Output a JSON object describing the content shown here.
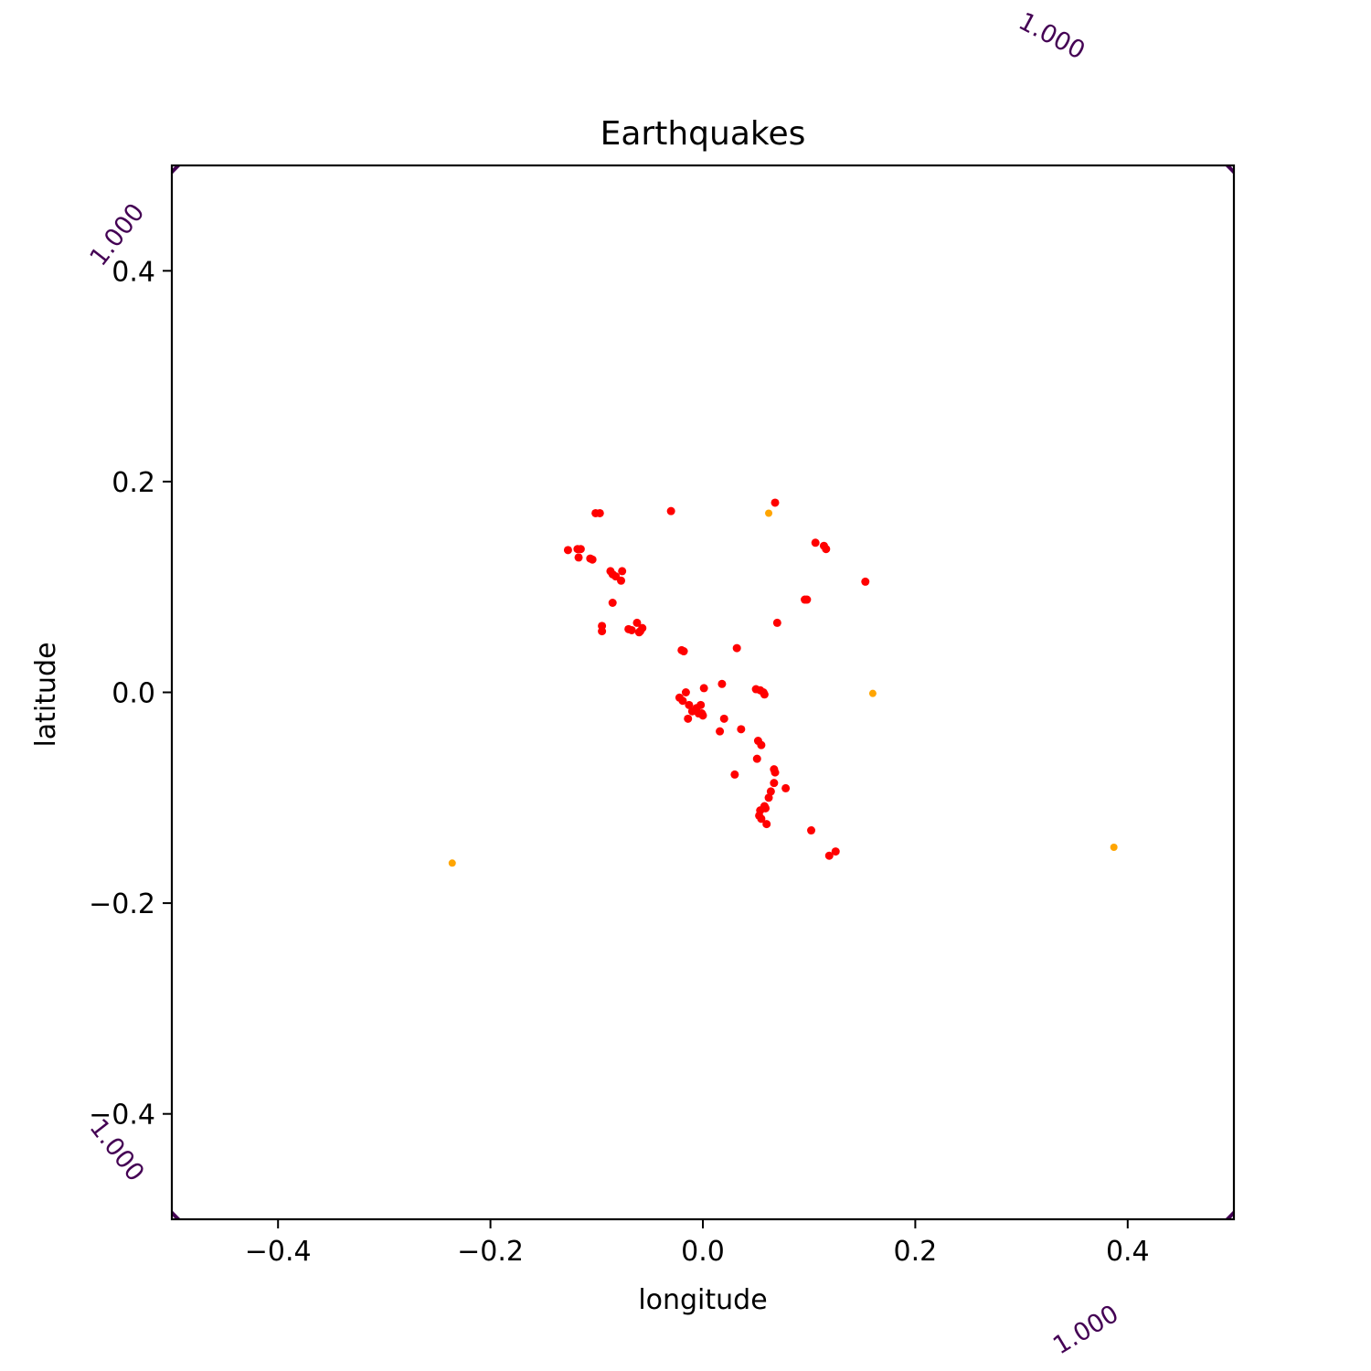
{
  "chart_data": {
    "type": "scatter",
    "title": "Earthquakes",
    "xlabel": "longitude",
    "ylabel": "latitude",
    "xlim": [
      -0.5,
      0.5
    ],
    "ylim": [
      -0.5,
      0.5
    ],
    "x_ticks": [
      -0.4,
      -0.2,
      0.0,
      0.2,
      0.4
    ],
    "x_tick_labels": [
      "−0.4",
      "−0.2",
      "0.0",
      "0.2",
      "0.4"
    ],
    "y_ticks": [
      -0.4,
      -0.2,
      0.0,
      0.2,
      0.4
    ],
    "y_tick_labels": [
      "−0.4",
      "−0.2",
      "0.0",
      "0.2",
      "0.4"
    ],
    "grid": false,
    "contour": {
      "level": 1.0,
      "label": "1.000",
      "color": "#440154",
      "center": [
        0.0,
        0.0
      ],
      "radius": 0.7
    },
    "series": [
      {
        "color": "#ff0000",
        "points": [
          [
            -0.127,
            0.135
          ],
          [
            -0.118,
            0.136
          ],
          [
            -0.115,
            0.136
          ],
          [
            -0.117,
            0.128
          ],
          [
            -0.106,
            0.127
          ],
          [
            -0.104,
            0.126
          ],
          [
            -0.101,
            0.17
          ],
          [
            -0.097,
            0.17
          ],
          [
            -0.03,
            0.172
          ],
          [
            0.068,
            0.18
          ],
          [
            -0.087,
            0.115
          ],
          [
            -0.085,
            0.112
          ],
          [
            -0.082,
            0.11
          ],
          [
            -0.076,
            0.115
          ],
          [
            -0.077,
            0.106
          ],
          [
            -0.085,
            0.085
          ],
          [
            -0.095,
            0.063
          ],
          [
            -0.095,
            0.058
          ],
          [
            -0.07,
            0.06
          ],
          [
            -0.067,
            0.059
          ],
          [
            -0.062,
            0.066
          ],
          [
            -0.059,
            0.058
          ],
          [
            -0.057,
            0.061
          ],
          [
            -0.06,
            0.057
          ],
          [
            -0.02,
            0.04
          ],
          [
            -0.018,
            0.039
          ],
          [
            0.032,
            0.042
          ],
          [
            0.106,
            0.142
          ],
          [
            0.114,
            0.139
          ],
          [
            0.116,
            0.136
          ],
          [
            0.153,
            0.105
          ],
          [
            0.096,
            0.088
          ],
          [
            0.098,
            0.088
          ],
          [
            0.07,
            0.066
          ],
          [
            0.001,
            0.004
          ],
          [
            0.018,
            0.008
          ],
          [
            0.05,
            0.003
          ],
          [
            0.054,
            0.002
          ],
          [
            0.057,
            0.0
          ],
          [
            0.058,
            -0.002
          ],
          [
            -0.022,
            -0.005
          ],
          [
            -0.019,
            -0.008
          ],
          [
            -0.016,
            0.0
          ],
          [
            -0.013,
            -0.012
          ],
          [
            -0.01,
            -0.018
          ],
          [
            -0.006,
            -0.015
          ],
          [
            -0.004,
            -0.02
          ],
          [
            -0.002,
            -0.012
          ],
          [
            -0.001,
            -0.02
          ],
          [
            0.0,
            -0.022
          ],
          [
            -0.014,
            -0.025
          ],
          [
            0.02,
            -0.025
          ],
          [
            0.016,
            -0.037
          ],
          [
            0.036,
            -0.035
          ],
          [
            0.052,
            -0.046
          ],
          [
            0.055,
            -0.05
          ],
          [
            0.051,
            -0.063
          ],
          [
            0.067,
            -0.073
          ],
          [
            0.068,
            -0.076
          ],
          [
            0.03,
            -0.078
          ],
          [
            0.067,
            -0.086
          ],
          [
            0.078,
            -0.091
          ],
          [
            0.064,
            -0.094
          ],
          [
            0.062,
            -0.1
          ],
          [
            0.058,
            -0.108
          ],
          [
            0.054,
            -0.112
          ],
          [
            0.059,
            -0.11
          ],
          [
            0.053,
            -0.117
          ],
          [
            0.055,
            -0.12
          ],
          [
            0.06,
            -0.125
          ],
          [
            0.102,
            -0.131
          ],
          [
            0.125,
            -0.151
          ],
          [
            0.119,
            -0.155
          ]
        ]
      },
      {
        "color": "#ffa500",
        "points": [
          [
            0.062,
            0.17
          ],
          [
            0.16,
            -0.001
          ],
          [
            -0.236,
            -0.162
          ],
          [
            0.387,
            -0.147
          ]
        ]
      }
    ]
  }
}
